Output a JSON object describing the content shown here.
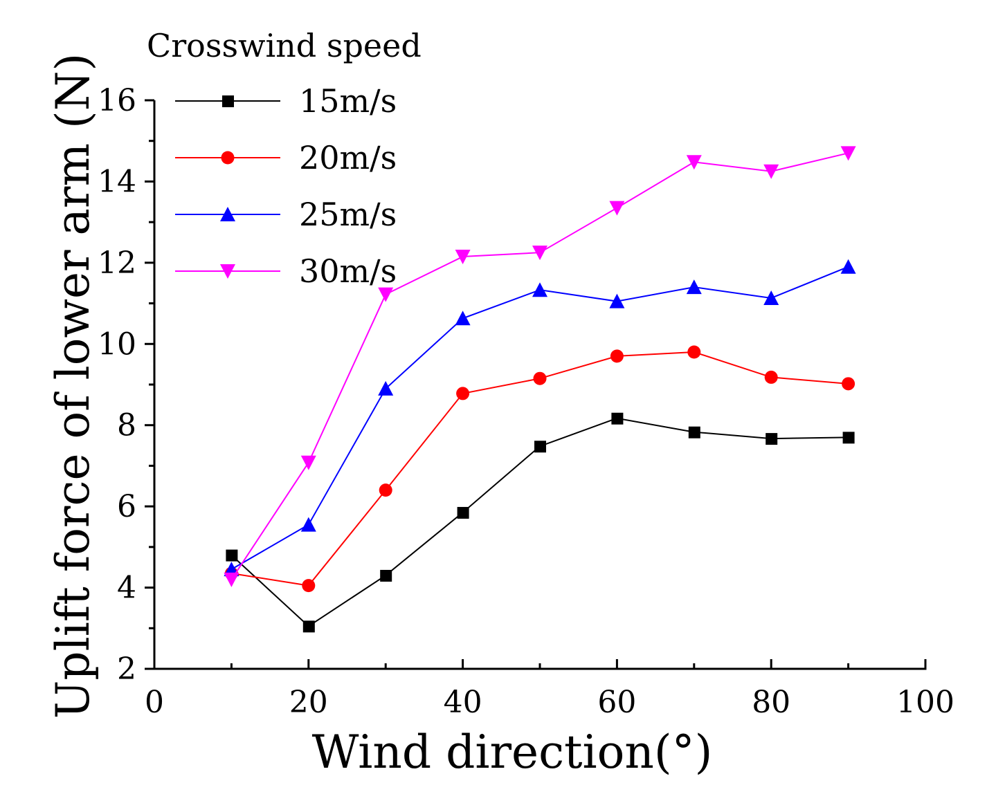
{
  "chart_data": {
    "type": "line",
    "title": "",
    "xlabel": "Wind direction(°)",
    "ylabel": "Uplift force of lower arm (N)",
    "xlim": [
      0,
      100
    ],
    "ylim": [
      2,
      16
    ],
    "x_ticks": [
      0,
      20,
      40,
      60,
      80,
      100
    ],
    "y_ticks": [
      2,
      4,
      6,
      8,
      10,
      12,
      14,
      16
    ],
    "legend_title": "Crosswind speed",
    "legend_position": "top-left",
    "x": [
      10,
      20,
      30,
      40,
      50,
      60,
      70,
      80,
      90
    ],
    "series": [
      {
        "name": "15m/s",
        "color": "#000000",
        "marker": "square",
        "values": [
          4.8,
          3.05,
          4.3,
          5.85,
          7.48,
          8.17,
          7.83,
          7.67,
          7.7
        ]
      },
      {
        "name": "20m/s",
        "color": "#ff0000",
        "marker": "circle",
        "values": [
          4.35,
          4.05,
          6.4,
          8.78,
          9.15,
          9.7,
          9.8,
          9.18,
          9.02
        ]
      },
      {
        "name": "25m/s",
        "color": "#0000ff",
        "marker": "triangle-up",
        "values": [
          4.45,
          5.55,
          8.9,
          10.63,
          11.33,
          11.05,
          11.4,
          11.13,
          11.9
        ]
      },
      {
        "name": "30m/s",
        "color": "#ff00ff",
        "marker": "triangle-down",
        "values": [
          4.2,
          7.08,
          11.22,
          12.15,
          12.25,
          13.35,
          14.48,
          14.25,
          14.7
        ]
      }
    ]
  }
}
